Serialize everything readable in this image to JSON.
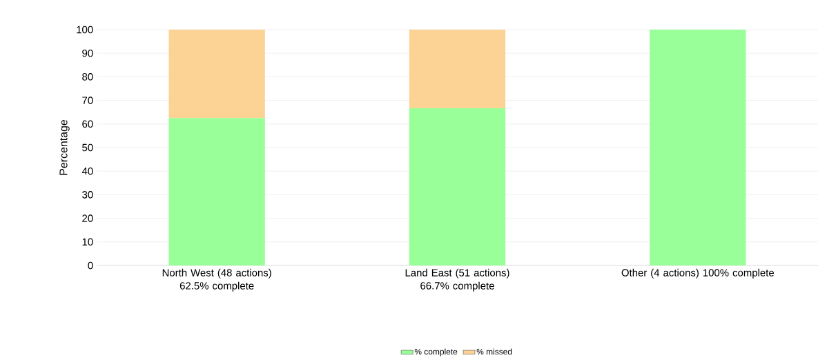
{
  "chart_data": {
    "type": "bar",
    "stacked": true,
    "ylabel": "Percentage",
    "categories": [
      "North West (48 actions) 62.5% complete",
      "Land East (51 actions) 66.7% complete",
      "Other (4 actions) 100% complete"
    ],
    "series": [
      {
        "name": "% complete",
        "color": "#99ff99",
        "values": [
          62.5,
          66.7,
          100
        ]
      },
      {
        "name": "% missed",
        "color": "#fcd395",
        "values": [
          37.5,
          33.3,
          0
        ]
      }
    ],
    "ylim": [
      0,
      100
    ],
    "yticks": [
      0,
      10,
      20,
      30,
      40,
      50,
      60,
      70,
      80,
      90,
      100
    ],
    "grid": "y",
    "legend": "bottom"
  }
}
